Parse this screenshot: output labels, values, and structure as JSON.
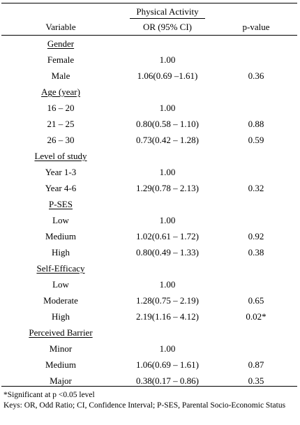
{
  "header": {
    "spanner": "Physical Activity",
    "col_variable": "Variable",
    "col_or": "OR (95% CI)",
    "col_p": "p-value"
  },
  "groups": [
    {
      "label": "Gender",
      "rows": [
        {
          "name": "Female",
          "or": "1.00",
          "p": ""
        },
        {
          "name": "Male",
          "or": "1.06(0.69 –1.61)",
          "p": "0.36"
        }
      ]
    },
    {
      "label": "Age (year)",
      "rows": [
        {
          "name": "16 – 20",
          "or": "1.00",
          "p": ""
        },
        {
          "name": "21 – 25",
          "or": "0.80(0.58 – 1.10)",
          "p": "0.88"
        },
        {
          "name": "26 – 30",
          "or": "0.73(0.42 – 1.28)",
          "p": "0.59"
        }
      ]
    },
    {
      "label": "Level of study",
      "rows": [
        {
          "name": "Year 1-3",
          "or": "1.00",
          "p": ""
        },
        {
          "name": "Year 4-6",
          "or": "1.29(0.78 – 2.13)",
          "p": "0.32"
        }
      ]
    },
    {
      "label": "P-SES",
      "rows": [
        {
          "name": "Low",
          "or": "1.00",
          "p": ""
        },
        {
          "name": "Medium",
          "or": "1.02(0.61 – 1.72)",
          "p": "0.92"
        },
        {
          "name": "High",
          "or": "0.80(0.49 – 1.33)",
          "p": "0.38"
        }
      ]
    },
    {
      "label": "Self-Efficacy",
      "rows": [
        {
          "name": "Low",
          "or": "1.00",
          "p": ""
        },
        {
          "name": "Moderate",
          "or": "1.28(0.75 – 2.19)",
          "p": "0.65"
        },
        {
          "name": "High",
          "or": "2.19(1.16 – 4.12)",
          "p": "0.02*"
        }
      ]
    },
    {
      "label": "Perceived Barrier",
      "rows": [
        {
          "name": "Minor",
          "or": "1.00",
          "p": ""
        },
        {
          "name": "Medium",
          "or": "1.06(0.69 – 1.61)",
          "p": "0.87"
        },
        {
          "name": "Major",
          "or": "0.38(0.17 – 0.86)",
          "p": "0.35"
        }
      ]
    }
  ],
  "footnotes": {
    "significance": "*Significant at p <0.05 level",
    "keys": "Keys: OR, Odd Ratio; CI, Confidence Interval; P-SES, Parental Socio-Economic Status"
  }
}
